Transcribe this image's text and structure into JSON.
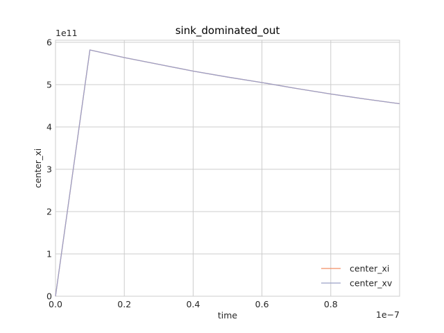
{
  "chart_data": {
    "type": "line",
    "title": "sink_dominated_out",
    "xlabel": "time",
    "ylabel": "center_xi",
    "x_offset_label": "1e−7",
    "y_offset_label": "1e11",
    "xlim": [
      0,
      1e-07
    ],
    "ylim": [
      0,
      605000000000.0
    ],
    "x_ticks": [
      0,
      2e-08,
      4e-08,
      6e-08,
      8e-08
    ],
    "x_tick_labels": [
      "0.0",
      "0.2",
      "0.4",
      "0.6",
      "0.8"
    ],
    "y_ticks": [
      0,
      100000000000.0,
      200000000000.0,
      300000000000.0,
      400000000000.0,
      500000000000.0,
      600000000000.0
    ],
    "y_tick_labels": [
      "0",
      "1",
      "2",
      "3",
      "4",
      "5",
      "6"
    ],
    "grid": true,
    "legend_position": "lower-right",
    "x": [
      0,
      1e-08,
      2e-08,
      3e-08,
      4e-08,
      5e-08,
      6e-08,
      7e-08,
      8e-08,
      9e-08,
      1e-07
    ],
    "series": [
      {
        "name": "center_xi",
        "color": "#f28e63",
        "values": [
          0,
          582000000000.0,
          564000000000.0,
          548000000000.0,
          532000000000.0,
          518000000000.0,
          505000000000.0,
          491000000000.0,
          478000000000.0,
          466000000000.0,
          455000000000.0
        ]
      },
      {
        "name": "center_xv",
        "color": "#9aa0c8",
        "values": [
          0,
          582000000000.0,
          564000000000.0,
          548000000000.0,
          532000000000.0,
          518000000000.0,
          505000000000.0,
          491000000000.0,
          478000000000.0,
          466000000000.0,
          455000000000.0
        ]
      }
    ]
  }
}
